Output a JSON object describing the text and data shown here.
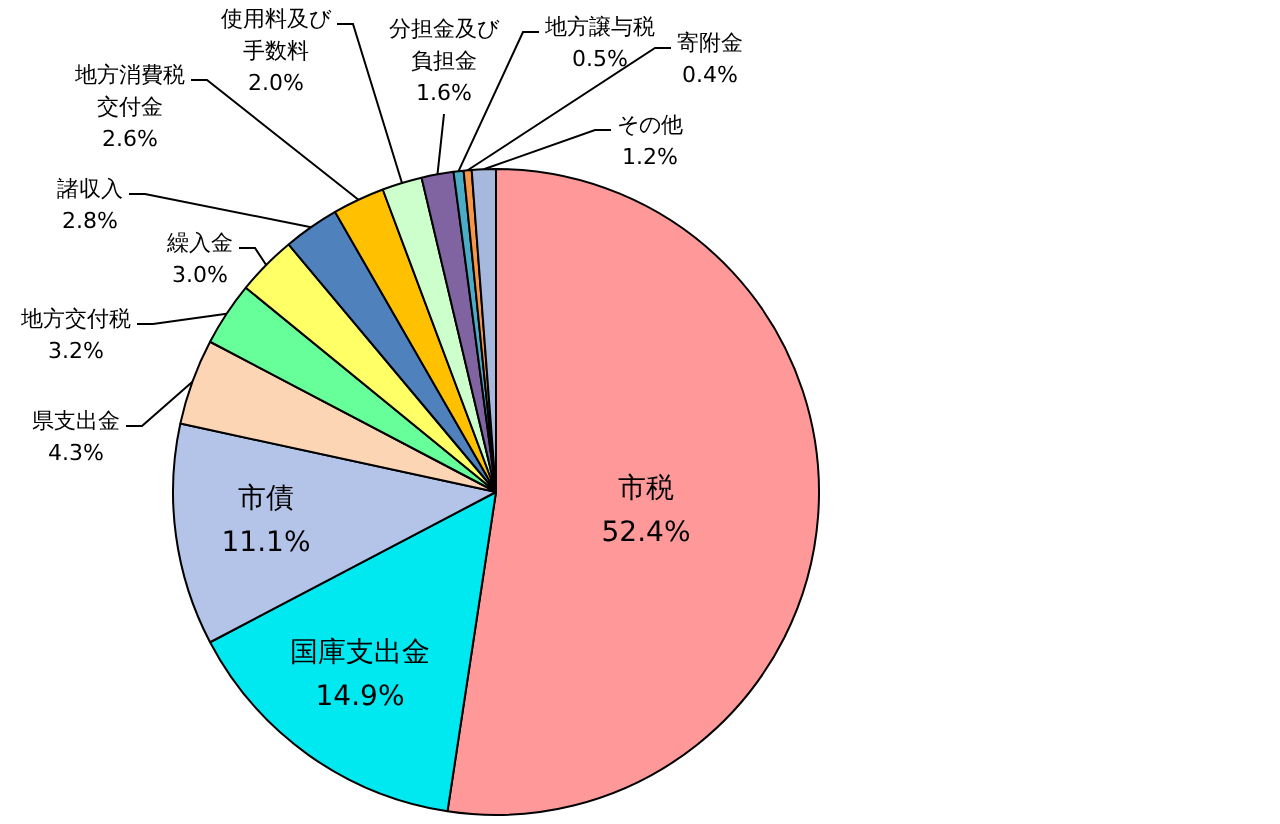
{
  "chart_data": {
    "type": "pie",
    "categories": [
      "市税",
      "国庫支出金",
      "市債",
      "県支出金",
      "地方交付税",
      "繰入金",
      "諸収入",
      "地方消費税交付金",
      "使用料及び手数料",
      "分担金及び負担金",
      "地方譲与税",
      "寄附金",
      "その他"
    ],
    "values": [
      52.4,
      14.9,
      11.1,
      4.3,
      3.2,
      3.0,
      2.8,
      2.6,
      2.0,
      1.6,
      0.5,
      0.4,
      1.2
    ],
    "colors": [
      "#ff9999",
      "#00e8f0",
      "#b4c4e8",
      "#fcd5b4",
      "#66ff99",
      "#ffff66",
      "#4f81bd",
      "#ffc000",
      "#ccffcc",
      "#8064a2",
      "#4bacc6",
      "#f79646",
      "#a6b8db"
    ],
    "value_labels": [
      "52.4%",
      "14.9%",
      "11.1%",
      "4.3%",
      "3.2%",
      "3.0%",
      "2.8%",
      "2.6%",
      "2.0%",
      "1.6%",
      "0.5%",
      "0.4%",
      "1.2%"
    ],
    "legend": false
  }
}
